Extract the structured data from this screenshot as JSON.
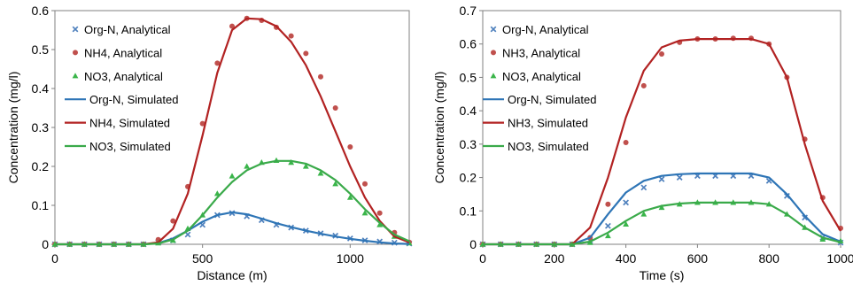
{
  "chart_data": [
    {
      "type": "line",
      "xlabel": "Distance (m)",
      "ylabel": "Concentration (mg/l)",
      "xlim": [
        0,
        1200
      ],
      "ylim": [
        0,
        0.6
      ],
      "xticks": [
        0,
        500,
        1000
      ],
      "yticks": [
        0,
        0.1,
        0.2,
        0.3,
        0.4,
        0.5,
        0.6
      ],
      "ytick_labels": [
        "0",
        "0.1",
        "0.2",
        "0.3",
        "0.4",
        "0.5",
        "0.6"
      ],
      "grid": false,
      "legend_position": "top-left",
      "series": [
        {
          "name": "Org-N, Analytical",
          "kind": "marker",
          "marker": "x",
          "color": "#4f81bd",
          "x": [
            0,
            50,
            100,
            150,
            200,
            250,
            300,
            350,
            400,
            450,
            500,
            550,
            600,
            650,
            700,
            750,
            800,
            850,
            900,
            950,
            1000,
            1050,
            1100,
            1150,
            1200
          ],
          "y": [
            0,
            0,
            0,
            0,
            0,
            0,
            0,
            0.005,
            0.01,
            0.025,
            0.05,
            0.075,
            0.08,
            0.072,
            0.062,
            0.05,
            0.043,
            0.035,
            0.028,
            0.022,
            0.015,
            0.01,
            0.007,
            0.004,
            0.002
          ]
        },
        {
          "name": "NH4, Analytical",
          "kind": "marker",
          "marker": "circle",
          "color": "#c0504d",
          "x": [
            0,
            50,
            100,
            150,
            200,
            250,
            300,
            350,
            400,
            450,
            500,
            550,
            600,
            650,
            700,
            750,
            800,
            850,
            900,
            950,
            1000,
            1050,
            1100,
            1150,
            1200
          ],
          "y": [
            0,
            0,
            0,
            0,
            0,
            0,
            0,
            0.012,
            0.06,
            0.148,
            0.31,
            0.465,
            0.56,
            0.58,
            0.575,
            0.557,
            0.535,
            0.49,
            0.43,
            0.35,
            0.25,
            0.155,
            0.08,
            0.03,
            0.005
          ]
        },
        {
          "name": "NO3, Analytical",
          "kind": "marker",
          "marker": "triangle",
          "color": "#3ab54a",
          "x": [
            0,
            50,
            100,
            150,
            200,
            250,
            300,
            350,
            400,
            450,
            500,
            550,
            600,
            650,
            700,
            750,
            800,
            850,
            900,
            950,
            1000,
            1050,
            1100,
            1150,
            1200
          ],
          "y": [
            0,
            0,
            0,
            0,
            0,
            0,
            0,
            0.003,
            0.01,
            0.04,
            0.075,
            0.13,
            0.175,
            0.2,
            0.21,
            0.215,
            0.21,
            0.2,
            0.182,
            0.155,
            0.12,
            0.08,
            0.05,
            0.02,
            0.003
          ]
        },
        {
          "name": "Org-N, Simulated",
          "kind": "line",
          "color": "#2e75b6",
          "x": [
            0,
            300,
            350,
            400,
            450,
            500,
            550,
            600,
            650,
            700,
            750,
            800,
            850,
            900,
            950,
            1000,
            1050,
            1100,
            1150,
            1200
          ],
          "y": [
            0,
            0,
            0.003,
            0.015,
            0.035,
            0.058,
            0.075,
            0.082,
            0.077,
            0.066,
            0.054,
            0.044,
            0.035,
            0.027,
            0.02,
            0.014,
            0.009,
            0.005,
            0.002,
            0.001
          ]
        },
        {
          "name": "NH4, Simulated",
          "kind": "line",
          "color": "#b22222",
          "x": [
            0,
            300,
            350,
            400,
            450,
            500,
            550,
            600,
            650,
            700,
            750,
            800,
            850,
            900,
            950,
            1000,
            1050,
            1100,
            1150,
            1200
          ],
          "y": [
            0,
            0,
            0.005,
            0.04,
            0.13,
            0.28,
            0.44,
            0.55,
            0.58,
            0.578,
            0.56,
            0.52,
            0.46,
            0.38,
            0.29,
            0.2,
            0.12,
            0.06,
            0.02,
            0.005
          ]
        },
        {
          "name": "NO3, Simulated",
          "kind": "line",
          "color": "#3aaa4a",
          "x": [
            0,
            300,
            350,
            400,
            450,
            500,
            550,
            600,
            650,
            700,
            750,
            800,
            850,
            900,
            950,
            1000,
            1050,
            1100,
            1150,
            1200
          ],
          "y": [
            0,
            0,
            0.002,
            0.012,
            0.035,
            0.075,
            0.12,
            0.16,
            0.19,
            0.207,
            0.214,
            0.214,
            0.207,
            0.19,
            0.165,
            0.13,
            0.09,
            0.055,
            0.025,
            0.008
          ]
        }
      ]
    },
    {
      "type": "line",
      "xlabel": "Time (s)",
      "ylabel": "Concentration (mg/l)",
      "xlim": [
        0,
        1000
      ],
      "ylim": [
        0,
        0.7
      ],
      "xticks": [
        0,
        200,
        400,
        600,
        800,
        1000
      ],
      "yticks": [
        0,
        0.1,
        0.2,
        0.3,
        0.4,
        0.5,
        0.6,
        0.7
      ],
      "ytick_labels": [
        "0",
        "0.1",
        "0.2",
        "0.3",
        "0.4",
        "0.5",
        "0.6",
        "0.7"
      ],
      "grid": false,
      "legend_position": "top-left",
      "series": [
        {
          "name": "Org-N, Analytical",
          "kind": "marker",
          "marker": "x",
          "color": "#4f81bd",
          "x": [
            0,
            50,
            100,
            150,
            200,
            250,
            300,
            350,
            400,
            450,
            500,
            550,
            600,
            650,
            700,
            750,
            800,
            850,
            900,
            950,
            1000
          ],
          "y": [
            0,
            0,
            0,
            0,
            0,
            0,
            0.01,
            0.055,
            0.125,
            0.17,
            0.195,
            0.2,
            0.205,
            0.205,
            0.205,
            0.205,
            0.19,
            0.145,
            0.08,
            0.02,
            0.005
          ]
        },
        {
          "name": "NH3, Analytical",
          "kind": "marker",
          "marker": "circle",
          "color": "#c0504d",
          "x": [
            0,
            50,
            100,
            150,
            200,
            250,
            300,
            350,
            400,
            450,
            500,
            550,
            600,
            650,
            700,
            750,
            800,
            850,
            900,
            950,
            1000
          ],
          "y": [
            0,
            0,
            0,
            0,
            0,
            0,
            0.02,
            0.12,
            0.305,
            0.475,
            0.57,
            0.605,
            0.615,
            0.615,
            0.617,
            0.617,
            0.6,
            0.5,
            0.315,
            0.14,
            0.048
          ]
        },
        {
          "name": "NO3, Analytical",
          "kind": "marker",
          "marker": "triangle",
          "color": "#3ab54a",
          "x": [
            0,
            50,
            100,
            150,
            200,
            250,
            300,
            350,
            400,
            450,
            500,
            550,
            600,
            650,
            700,
            750,
            800,
            850,
            900,
            950,
            1000
          ],
          "y": [
            0,
            0,
            0,
            0,
            0,
            0,
            0.005,
            0.025,
            0.06,
            0.09,
            0.11,
            0.12,
            0.125,
            0.125,
            0.125,
            0.125,
            0.12,
            0.09,
            0.05,
            0.015,
            0.01
          ]
        },
        {
          "name": "Org-N, Simulated",
          "kind": "line",
          "color": "#2e75b6",
          "x": [
            0,
            250,
            300,
            350,
            400,
            450,
            500,
            550,
            600,
            650,
            700,
            750,
            800,
            850,
            900,
            950,
            1000
          ],
          "y": [
            0,
            0,
            0.02,
            0.09,
            0.155,
            0.19,
            0.205,
            0.21,
            0.212,
            0.212,
            0.212,
            0.212,
            0.2,
            0.15,
            0.085,
            0.03,
            0.008
          ]
        },
        {
          "name": "NH3, Simulated",
          "kind": "line",
          "color": "#b22222",
          "x": [
            0,
            250,
            300,
            350,
            400,
            450,
            500,
            550,
            600,
            650,
            700,
            750,
            800,
            850,
            900,
            950,
            1000
          ],
          "y": [
            0,
            0,
            0.05,
            0.2,
            0.38,
            0.52,
            0.59,
            0.61,
            0.615,
            0.615,
            0.615,
            0.615,
            0.6,
            0.5,
            0.3,
            0.13,
            0.04
          ]
        },
        {
          "name": "NO3, Simulated",
          "kind": "line",
          "color": "#3aaa4a",
          "x": [
            0,
            250,
            300,
            350,
            400,
            450,
            500,
            550,
            600,
            650,
            700,
            750,
            800,
            850,
            900,
            950,
            1000
          ],
          "y": [
            0,
            0,
            0.008,
            0.035,
            0.07,
            0.1,
            0.115,
            0.122,
            0.125,
            0.125,
            0.125,
            0.125,
            0.12,
            0.09,
            0.05,
            0.02,
            0.006
          ]
        }
      ]
    }
  ]
}
